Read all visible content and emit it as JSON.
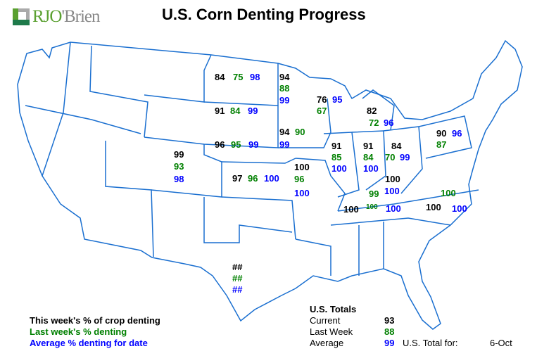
{
  "logo_text": "RJO'Brien",
  "title": "U.S. Corn Denting Progress",
  "colors": {
    "current": "#000000",
    "last_week": "#008000",
    "average": "#0000ff",
    "borders": "#1a6fd0"
  },
  "states": {
    "ND": {
      "current": "84",
      "last": "75",
      "avg": "98"
    },
    "MN": {
      "current": "94",
      "last": "88",
      "avg": "99"
    },
    "WI": {
      "current": "76",
      "last": "67",
      "avg": "95"
    },
    "MI": {
      "current": "82",
      "last": "72",
      "avg": "96"
    },
    "SD": {
      "current": "91",
      "last": "84",
      "avg": "99"
    },
    "NE": {
      "current": "96",
      "last": "95",
      "avg": "99"
    },
    "IA": {
      "current": "94",
      "last": "90",
      "avg": "99"
    },
    "CO": {
      "current": "99",
      "last": "93",
      "avg": "98"
    },
    "KS": {
      "current": "97",
      "last": "96",
      "avg": "100"
    },
    "MO": {
      "current": "100",
      "last": "96",
      "avg": "100"
    },
    "IL": {
      "current": "91",
      "last": "85",
      "avg": "100"
    },
    "IN": {
      "current": "91",
      "last": "84",
      "avg": "100"
    },
    "OH": {
      "current": "84",
      "last": "70",
      "avg": "99"
    },
    "PA": {
      "current": "90",
      "last": "87",
      "avg": "96"
    },
    "KY": {
      "current": "100",
      "last": "99",
      "avg": "100"
    },
    "TN": {
      "current": "100",
      "last": "100",
      "avg": "100"
    },
    "NC": {
      "current": "100",
      "last": "100",
      "avg": "100"
    },
    "TX": {
      "current": "##",
      "last": "##",
      "avg": "##"
    }
  },
  "legend": {
    "current": "This week's % of crop denting",
    "last": "Last week's % denting",
    "avg": "Average % denting for date"
  },
  "totals": {
    "heading": "U.S. Totals",
    "current_label": "Current",
    "current": "93",
    "last_label": "Last Week",
    "last": "88",
    "avg_label": "Average",
    "avg": "99",
    "total_for_label": "U.S. Total for:",
    "date": "6-Oct"
  }
}
